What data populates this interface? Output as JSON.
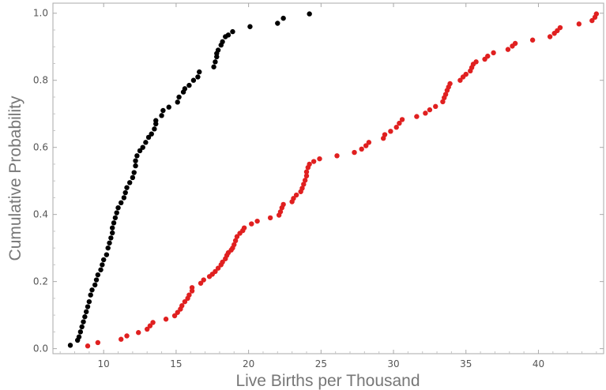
{
  "chart_data": {
    "type": "scatter",
    "title": "",
    "xlabel": "Live Births per Thousand",
    "ylabel": "Cumulative Probability",
    "xlim": [
      6.5,
      44.5
    ],
    "ylim": [
      -0.015,
      1.03
    ],
    "x_ticks": [
      10,
      15,
      20,
      25,
      30,
      35,
      40
    ],
    "y_ticks": [
      0.0,
      0.2,
      0.4,
      0.6,
      0.8,
      1.0
    ],
    "x_tick_labels": [
      "10",
      "15",
      "20",
      "25",
      "30",
      "35",
      "40"
    ],
    "y_tick_labels": [
      "0.0",
      "0.2",
      "0.4",
      "0.6",
      "0.8",
      "1.0"
    ],
    "grid": false,
    "legend": "none",
    "series": [
      {
        "color": "#000000",
        "points": [
          [
            7.7,
            0.01
          ],
          [
            8.2,
            0.025
          ],
          [
            8.3,
            0.035
          ],
          [
            8.4,
            0.05
          ],
          [
            8.5,
            0.065
          ],
          [
            8.6,
            0.08
          ],
          [
            8.7,
            0.095
          ],
          [
            8.8,
            0.11
          ],
          [
            8.9,
            0.125
          ],
          [
            9.0,
            0.14
          ],
          [
            9.1,
            0.16
          ],
          [
            9.2,
            0.175
          ],
          [
            9.4,
            0.19
          ],
          [
            9.5,
            0.205
          ],
          [
            9.6,
            0.22
          ],
          [
            9.8,
            0.235
          ],
          [
            9.9,
            0.25
          ],
          [
            10.0,
            0.265
          ],
          [
            10.2,
            0.28
          ],
          [
            10.3,
            0.3
          ],
          [
            10.4,
            0.315
          ],
          [
            10.5,
            0.33
          ],
          [
            10.6,
            0.345
          ],
          [
            10.6,
            0.36
          ],
          [
            10.7,
            0.375
          ],
          [
            10.8,
            0.39
          ],
          [
            10.9,
            0.405
          ],
          [
            11.0,
            0.42
          ],
          [
            11.2,
            0.435
          ],
          [
            11.4,
            0.45
          ],
          [
            11.5,
            0.465
          ],
          [
            11.6,
            0.48
          ],
          [
            11.8,
            0.495
          ],
          [
            12.0,
            0.51
          ],
          [
            12.1,
            0.525
          ],
          [
            12.2,
            0.545
          ],
          [
            12.2,
            0.56
          ],
          [
            12.3,
            0.575
          ],
          [
            12.5,
            0.59
          ],
          [
            12.7,
            0.6
          ],
          [
            12.9,
            0.615
          ],
          [
            13.1,
            0.63
          ],
          [
            13.3,
            0.64
          ],
          [
            13.5,
            0.655
          ],
          [
            13.6,
            0.67
          ],
          [
            13.6,
            0.68
          ],
          [
            14.0,
            0.695
          ],
          [
            14.1,
            0.71
          ],
          [
            14.5,
            0.72
          ],
          [
            15.1,
            0.735
          ],
          [
            15.2,
            0.75
          ],
          [
            15.5,
            0.765
          ],
          [
            15.6,
            0.775
          ],
          [
            15.9,
            0.785
          ],
          [
            16.2,
            0.8
          ],
          [
            16.5,
            0.81
          ],
          [
            16.6,
            0.825
          ],
          [
            17.6,
            0.84
          ],
          [
            17.7,
            0.855
          ],
          [
            17.8,
            0.87
          ],
          [
            17.8,
            0.88
          ],
          [
            17.9,
            0.89
          ],
          [
            18.1,
            0.905
          ],
          [
            18.2,
            0.915
          ],
          [
            18.4,
            0.93
          ],
          [
            18.6,
            0.935
          ],
          [
            18.9,
            0.945
          ],
          [
            20.1,
            0.96
          ],
          [
            22.0,
            0.97
          ],
          [
            22.4,
            0.985
          ],
          [
            24.2,
            0.998
          ]
        ]
      },
      {
        "color": "#e02020",
        "points": [
          [
            8.9,
            0.008
          ],
          [
            9.6,
            0.018
          ],
          [
            11.2,
            0.028
          ],
          [
            11.6,
            0.038
          ],
          [
            12.4,
            0.048
          ],
          [
            13.0,
            0.058
          ],
          [
            13.2,
            0.068
          ],
          [
            13.4,
            0.078
          ],
          [
            14.3,
            0.088
          ],
          [
            14.9,
            0.098
          ],
          [
            15.1,
            0.108
          ],
          [
            15.3,
            0.118
          ],
          [
            15.4,
            0.128
          ],
          [
            15.6,
            0.14
          ],
          [
            15.8,
            0.15
          ],
          [
            15.9,
            0.16
          ],
          [
            16.1,
            0.172
          ],
          [
            16.1,
            0.182
          ],
          [
            16.7,
            0.195
          ],
          [
            16.9,
            0.205
          ],
          [
            17.3,
            0.215
          ],
          [
            17.5,
            0.222
          ],
          [
            17.7,
            0.23
          ],
          [
            17.9,
            0.24
          ],
          [
            18.1,
            0.25
          ],
          [
            18.2,
            0.258
          ],
          [
            18.4,
            0.268
          ],
          [
            18.5,
            0.278
          ],
          [
            18.6,
            0.286
          ],
          [
            18.8,
            0.294
          ],
          [
            18.9,
            0.3
          ],
          [
            19.0,
            0.31
          ],
          [
            19.1,
            0.322
          ],
          [
            19.2,
            0.334
          ],
          [
            19.4,
            0.344
          ],
          [
            19.6,
            0.352
          ],
          [
            19.7,
            0.36
          ],
          [
            20.2,
            0.372
          ],
          [
            20.6,
            0.38
          ],
          [
            21.5,
            0.39
          ],
          [
            22.1,
            0.398
          ],
          [
            22.2,
            0.408
          ],
          [
            22.3,
            0.42
          ],
          [
            22.4,
            0.43
          ],
          [
            23.0,
            0.438
          ],
          [
            23.1,
            0.448
          ],
          [
            23.3,
            0.458
          ],
          [
            23.6,
            0.468
          ],
          [
            23.7,
            0.478
          ],
          [
            23.8,
            0.49
          ],
          [
            23.9,
            0.502
          ],
          [
            24.0,
            0.515
          ],
          [
            24.0,
            0.527
          ],
          [
            24.1,
            0.54
          ],
          [
            24.2,
            0.55
          ],
          [
            24.5,
            0.558
          ],
          [
            24.9,
            0.566
          ],
          [
            26.1,
            0.575
          ],
          [
            27.3,
            0.585
          ],
          [
            27.8,
            0.595
          ],
          [
            28.1,
            0.605
          ],
          [
            28.3,
            0.615
          ],
          [
            29.3,
            0.627
          ],
          [
            29.4,
            0.638
          ],
          [
            29.8,
            0.648
          ],
          [
            30.2,
            0.66
          ],
          [
            30.4,
            0.672
          ],
          [
            30.6,
            0.683
          ],
          [
            31.6,
            0.692
          ],
          [
            32.2,
            0.702
          ],
          [
            32.5,
            0.712
          ],
          [
            32.9,
            0.722
          ],
          [
            33.4,
            0.736
          ],
          [
            33.5,
            0.748
          ],
          [
            33.6,
            0.758
          ],
          [
            33.7,
            0.77
          ],
          [
            33.8,
            0.78
          ],
          [
            33.9,
            0.79
          ],
          [
            34.6,
            0.8
          ],
          [
            34.8,
            0.81
          ],
          [
            35.0,
            0.818
          ],
          [
            35.3,
            0.828
          ],
          [
            35.4,
            0.838
          ],
          [
            35.5,
            0.848
          ],
          [
            35.7,
            0.855
          ],
          [
            36.3,
            0.863
          ],
          [
            36.5,
            0.872
          ],
          [
            36.9,
            0.882
          ],
          [
            37.9,
            0.892
          ],
          [
            38.2,
            0.902
          ],
          [
            38.4,
            0.91
          ],
          [
            39.6,
            0.92
          ],
          [
            40.8,
            0.93
          ],
          [
            41.1,
            0.94
          ],
          [
            41.3,
            0.948
          ],
          [
            41.5,
            0.957
          ],
          [
            42.8,
            0.968
          ],
          [
            43.7,
            0.978
          ],
          [
            43.9,
            0.988
          ],
          [
            44.0,
            0.998
          ]
        ]
      }
    ]
  }
}
